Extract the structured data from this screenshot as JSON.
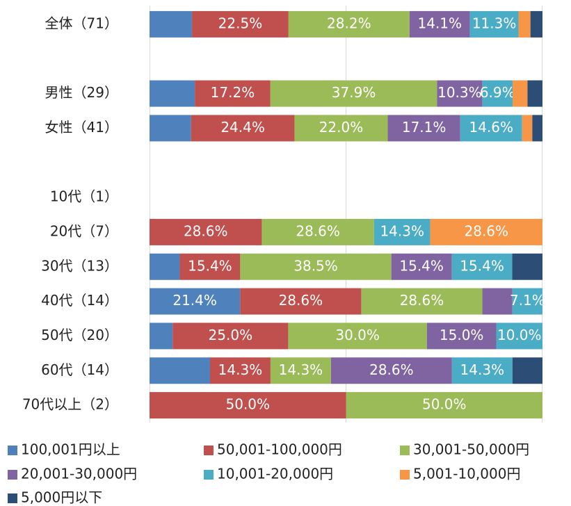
{
  "chart_data": {
    "type": "bar",
    "orientation": "horizontal",
    "stacked": "percent",
    "categories": [
      "全体（71）",
      null,
      "男性（29）",
      "女性（41）",
      null,
      "10代（1）",
      "20代（7）",
      "30代（13）",
      "40代（14）",
      "50代（20）",
      "60代（14）",
      "70代以上（2）"
    ],
    "series": [
      {
        "name": "100,001円以上",
        "color": "#4f81bd",
        "values": [
          9.9,
          null,
          10.3,
          9.8,
          null,
          null,
          0,
          7.7,
          21.4,
          5.0,
          14.3,
          0
        ],
        "value_labels": [
          null,
          null,
          null,
          null,
          null,
          null,
          null,
          null,
          "21.4%",
          null,
          null,
          null
        ]
      },
      {
        "name": "50,001-100,000円",
        "color": "#c0504d",
        "values": [
          22.5,
          null,
          17.2,
          24.4,
          null,
          null,
          28.6,
          15.4,
          28.6,
          25.0,
          14.3,
          50.0
        ],
        "value_labels": [
          "22.5%",
          null,
          "17.2%",
          "24.4%",
          null,
          null,
          "28.6%",
          "15.4%",
          "28.6%",
          "25.0%",
          "14.3%",
          "50.0%"
        ]
      },
      {
        "name": "30,001-50,000円",
        "color": "#9bbb59",
        "values": [
          28.2,
          null,
          37.9,
          22.0,
          null,
          null,
          28.6,
          38.5,
          28.6,
          30.0,
          14.3,
          50.0
        ],
        "value_labels": [
          "28.2%",
          null,
          "37.9%",
          "22.0%",
          null,
          null,
          "28.6%",
          "38.5%",
          "28.6%",
          "30.0%",
          "14.3%",
          "50.0%"
        ]
      },
      {
        "name": "20,001-30,000円",
        "color": "#8064a2",
        "values": [
          14.1,
          null,
          10.3,
          17.1,
          null,
          null,
          0,
          15.4,
          7.1,
          15.0,
          28.6,
          0
        ],
        "value_labels": [
          "14.1%",
          null,
          "10.3%",
          "17.1%",
          null,
          null,
          null,
          "15.4%",
          null,
          "15.0%",
          "28.6%",
          null
        ]
      },
      {
        "name": "10,001-20,000円",
        "color": "#4bacc6",
        "values": [
          11.3,
          null,
          6.9,
          14.6,
          null,
          null,
          14.3,
          15.4,
          7.1,
          10.0,
          14.3,
          0
        ],
        "value_labels": [
          "11.3%",
          null,
          "6.9%",
          "14.6%",
          null,
          null,
          "14.3%",
          "15.4%",
          "7.1%",
          "10.0%",
          "14.3%",
          null
        ]
      },
      {
        "name": "5,001-10,000円",
        "color": "#f79646",
        "values": [
          2.8,
          null,
          3.4,
          2.4,
          null,
          null,
          28.6,
          0,
          0,
          0,
          0,
          0
        ],
        "value_labels": [
          null,
          null,
          null,
          null,
          null,
          null,
          "28.6%",
          null,
          null,
          null,
          null,
          null
        ]
      },
      {
        "name": "5,000円以下",
        "color": "#2c4d75",
        "values": [
          2.8,
          null,
          3.4,
          2.4,
          null,
          null,
          0,
          7.7,
          0,
          0,
          7.1,
          0
        ],
        "value_labels": [
          null,
          null,
          null,
          null,
          null,
          null,
          null,
          null,
          null,
          null,
          null,
          null
        ]
      }
    ]
  }
}
